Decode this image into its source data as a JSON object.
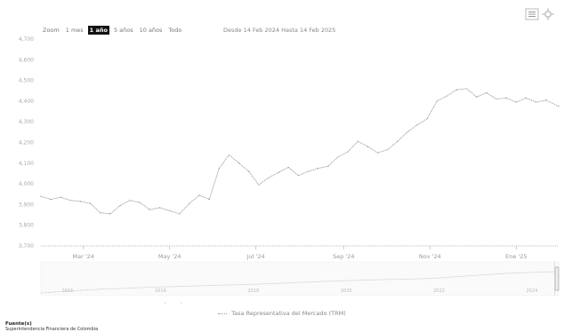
{
  "range_selector": {
    "label": "Zoom",
    "buttons": [
      {
        "label": "1 mes",
        "active": false
      },
      {
        "label": "1 año",
        "active": true
      },
      {
        "label": "5 años",
        "active": false
      },
      {
        "label": "10 años",
        "active": false
      },
      {
        "label": "Todo",
        "active": false
      }
    ]
  },
  "date_range": {
    "text": "Desde 14 Feb 2024 Hasta 14 Feb 2025"
  },
  "legend": {
    "label": "Tasa Representativa del Mercado (TRM)"
  },
  "sources": {
    "title": "Fuente(s)",
    "text": "Superintendencia Financiera de Colombia"
  },
  "navigator": {
    "tick_labels": [
      "2015",
      "2016",
      "2018",
      "2020",
      "2022",
      "2024"
    ]
  },
  "icons": {
    "menu": "chart-menu-icon",
    "settings": "settings-icon"
  },
  "colors": {
    "line": "#999999",
    "active_button": "#111111",
    "background": "#ffffff"
  },
  "chart_data": {
    "type": "line",
    "title": "",
    "xlabel": "",
    "ylabel": "",
    "x_tick_labels": [
      "Mar '24",
      "May '24",
      "Jul '24",
      "Sep '24",
      "Nov '24",
      "Ene '25"
    ],
    "y_tick_labels": [
      "3,700",
      "3,800",
      "3,900",
      "4,000",
      "4,100",
      "4,200",
      "4,300",
      "4,400",
      "4,500",
      "4,600",
      "4,700"
    ],
    "ylim": [
      3700,
      4700
    ],
    "grid": false,
    "legend_position": "bottom",
    "series": [
      {
        "name": "Tasa Representativa del Mercado (TRM)",
        "color": "#999999",
        "x": [
          "2024-02-14",
          "2024-02-21",
          "2024-02-28",
          "2024-03-06",
          "2024-03-13",
          "2024-03-20",
          "2024-03-27",
          "2024-04-03",
          "2024-04-10",
          "2024-04-17",
          "2024-04-24",
          "2024-05-01",
          "2024-05-08",
          "2024-05-15",
          "2024-05-22",
          "2024-05-29",
          "2024-06-05",
          "2024-06-12",
          "2024-06-19",
          "2024-06-26",
          "2024-07-03",
          "2024-07-10",
          "2024-07-17",
          "2024-07-24",
          "2024-07-31",
          "2024-08-07",
          "2024-08-14",
          "2024-08-21",
          "2024-08-28",
          "2024-09-04",
          "2024-09-11",
          "2024-09-18",
          "2024-09-25",
          "2024-10-02",
          "2024-10-09",
          "2024-10-16",
          "2024-10-23",
          "2024-10-30",
          "2024-11-06",
          "2024-11-13",
          "2024-11-20",
          "2024-11-27",
          "2024-12-04",
          "2024-12-11",
          "2024-12-18",
          "2024-12-25",
          "2025-01-01",
          "2025-01-08",
          "2025-01-15",
          "2025-01-22",
          "2025-01-29",
          "2025-02-05",
          "2025-02-14"
        ],
        "values": [
          3940,
          3925,
          3935,
          3920,
          3915,
          3905,
          3860,
          3855,
          3895,
          3920,
          3910,
          3875,
          3885,
          3870,
          3855,
          3905,
          3945,
          3925,
          4075,
          4140,
          4100,
          4060,
          3995,
          4030,
          4055,
          4080,
          4040,
          4060,
          4075,
          4085,
          4130,
          4155,
          4205,
          4180,
          4150,
          4165,
          4205,
          4250,
          4285,
          4315,
          4400,
          4425,
          4455,
          4460,
          4420,
          4440,
          4410,
          4415,
          4395,
          4415,
          4395,
          4405,
          4375
        ]
      }
    ],
    "navigator_series": [
      2900,
      2950,
      3000,
      3050,
      3100,
      3140,
      3180,
      3200,
      3230,
      3260,
      3290,
      3320,
      3340,
      3360,
      3380,
      3400,
      3430,
      3450,
      3470,
      3490,
      3510,
      3530,
      3560,
      3590,
      3620,
      3650,
      3680,
      3710,
      3740,
      3760,
      3790,
      3810,
      3830,
      3850,
      3870,
      3880,
      3900,
      3920,
      3950,
      4000,
      4050,
      4110,
      4150,
      4200,
      4250,
      4300,
      4330,
      4360,
      4380,
      4400,
      4420
    ]
  }
}
